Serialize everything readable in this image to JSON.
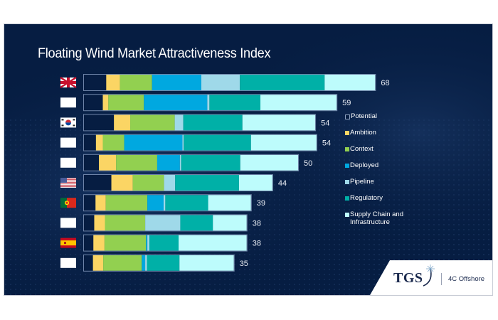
{
  "chart_data": {
    "type": "bar",
    "orientation": "horizontal",
    "stacked": true,
    "title": "Floating Wind Market Attractiveness Index",
    "xlabel": "",
    "ylabel": "",
    "xlim": [
      0,
      70
    ],
    "grid": false,
    "legend_position": "right",
    "categories": [
      {
        "flag": "uk-flag",
        "total": 68
      },
      {
        "flag": "blank-flag",
        "total": 59
      },
      {
        "flag": "south-korea-flag",
        "total": 54
      },
      {
        "flag": "blank-flag",
        "total": 54
      },
      {
        "flag": "blank-flag",
        "total": 50
      },
      {
        "flag": "usa-flag",
        "total": 44
      },
      {
        "flag": "portugal-flag",
        "total": 39
      },
      {
        "flag": "blank-flag",
        "total": 38
      },
      {
        "flag": "spain-flag",
        "total": 38
      },
      {
        "flag": "blank-flag",
        "total": 35
      }
    ],
    "series": [
      {
        "name": "Potential",
        "color": "#061d42",
        "outline": true,
        "values": [
          5.2,
          4.4,
          7.0,
          2.8,
          3.5,
          6.4,
          2.7,
          2.4,
          2.2,
          2.1
        ]
      },
      {
        "name": "Ambition",
        "color": "#fbd564",
        "values": [
          3.2,
          1.3,
          3.8,
          1.6,
          4.0,
          5.0,
          2.4,
          2.5,
          2.6,
          2.4
        ]
      },
      {
        "name": "Context",
        "color": "#92d050",
        "values": [
          7.5,
          8.3,
          10.4,
          5.0,
          9.6,
          7.3,
          9.7,
          9.4,
          9.7,
          9.0
        ]
      },
      {
        "name": "Deployed",
        "color": "#00a8e0",
        "values": [
          11.5,
          14.8,
          0,
          13.6,
          5.3,
          0,
          3.8,
          0,
          0.3,
          0.8
        ]
      },
      {
        "name": "Pipeline",
        "color": "#9fd9e9",
        "values": [
          9.0,
          0.5,
          2.0,
          0.3,
          0.3,
          2.6,
          0.4,
          8.2,
          0.5,
          0.4
        ]
      },
      {
        "name": "Regulatory",
        "color": "#00b0a7",
        "values": [
          19.8,
          11.9,
          13.8,
          15.7,
          13.8,
          14.9,
          10.0,
          7.6,
          6.8,
          7.6
        ]
      },
      {
        "name": "Supply Chain and Infrastructure",
        "color": "#bdfcfc",
        "values": [
          11.8,
          17.8,
          17.0,
          15.3,
          13.5,
          7.8,
          10.0,
          7.9,
          15.9,
          12.7
        ]
      }
    ],
    "value_labels": [
      "68",
      "59",
      "54",
      "54",
      "50",
      "44",
      "39",
      "38",
      "38",
      "35"
    ]
  },
  "legend": [
    {
      "label": "Potential",
      "color": "#061d42",
      "outline": true
    },
    {
      "label": "Ambition",
      "color": "#fbd564"
    },
    {
      "label": "Context",
      "color": "#92d050"
    },
    {
      "label": "Deployed",
      "color": "#00a8e0"
    },
    {
      "label": "Pipeline",
      "color": "#9fd9e9"
    },
    {
      "label": "Regulatory",
      "color": "#00b0a7"
    },
    {
      "label": "Supply Chain and Infrastructure",
      "color": "#bdfcfc"
    }
  ],
  "branding": {
    "logo_text": "TGS",
    "partner_text": "4C Offshore"
  },
  "colors": {
    "background": "#061d42",
    "bar_outline": "#6e84a8"
  }
}
